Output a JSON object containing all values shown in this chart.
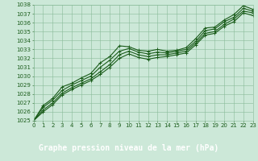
{
  "title": "Graphe pression niveau de la mer (hPa)",
  "xlim": [
    0,
    23
  ],
  "ylim": [
    1025,
    1038
  ],
  "xticks": [
    0,
    1,
    2,
    3,
    4,
    5,
    6,
    7,
    8,
    9,
    10,
    11,
    12,
    13,
    14,
    15,
    16,
    17,
    18,
    19,
    20,
    21,
    22,
    23
  ],
  "yticks": [
    1025,
    1026,
    1027,
    1028,
    1029,
    1030,
    1031,
    1032,
    1033,
    1034,
    1035,
    1036,
    1037,
    1038
  ],
  "bg_color": "#cce8d8",
  "grid_color": "#88bb99",
  "line_color": "#1a5c1a",
  "series": [
    [
      1025.0,
      1026.7,
      1027.5,
      1028.8,
      1029.2,
      1029.8,
      1030.3,
      1031.5,
      1032.2,
      1033.4,
      1033.3,
      1032.9,
      1032.8,
      1033.0,
      1032.8,
      1032.9,
      1033.2,
      1034.2,
      1035.4,
      1035.5,
      1036.3,
      1036.9,
      1037.9,
      1037.5
    ],
    [
      1025.0,
      1026.5,
      1027.3,
      1028.4,
      1029.0,
      1029.5,
      1030.0,
      1031.0,
      1031.8,
      1032.8,
      1033.1,
      1032.7,
      1032.5,
      1032.7,
      1032.6,
      1032.8,
      1033.0,
      1033.9,
      1035.1,
      1035.3,
      1036.1,
      1036.6,
      1037.6,
      1037.3
    ],
    [
      1025.0,
      1026.2,
      1027.0,
      1028.1,
      1028.7,
      1029.2,
      1029.7,
      1030.5,
      1031.3,
      1032.4,
      1032.8,
      1032.4,
      1032.2,
      1032.4,
      1032.4,
      1032.6,
      1032.8,
      1033.7,
      1034.8,
      1035.0,
      1035.8,
      1036.4,
      1037.3,
      1037.1
    ],
    [
      1025.0,
      1026.0,
      1026.8,
      1027.9,
      1028.5,
      1029.0,
      1029.5,
      1030.2,
      1031.0,
      1032.0,
      1032.5,
      1032.1,
      1031.9,
      1032.1,
      1032.2,
      1032.4,
      1032.6,
      1033.5,
      1034.6,
      1034.8,
      1035.6,
      1036.1,
      1037.1,
      1036.8
    ]
  ],
  "marker": "+",
  "marker_size": 3.5,
  "line_width": 0.8,
  "title_fontsize": 7.0,
  "tick_fontsize": 5.0,
  "tick_color": "#1a5c1a",
  "title_color": "#ffffff",
  "title_bg": "#2d6e2d",
  "title_bar_height": 0.12
}
